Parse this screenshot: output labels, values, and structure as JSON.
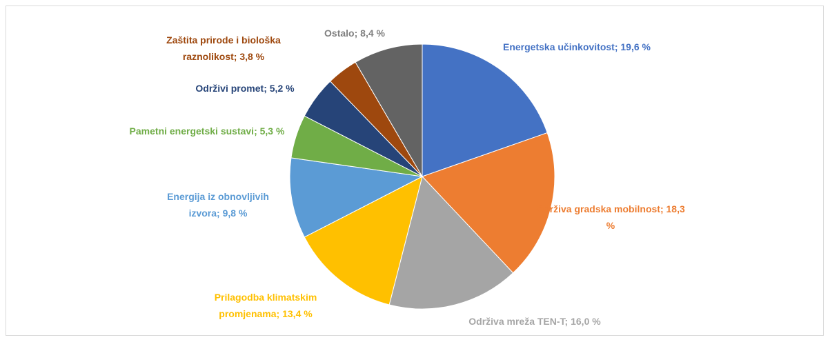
{
  "chart_data": {
    "type": "pie",
    "categories": [
      "Energetska učinkovitost;",
      "Održiva gradska mobilnost;",
      "Održiva mreža TEN-T;",
      "Prilagodba klimatskim promjenama;",
      "Energija iz obnovljivih izvora;",
      "Pametni energetski sustavi;",
      "Održivi promet;",
      "Zaštita prirode i biološka raznolikost;",
      "Ostalo;"
    ],
    "values": [
      19.6,
      18.3,
      16.0,
      13.4,
      9.8,
      5.3,
      5.2,
      3.8,
      8.4
    ],
    "value_labels": [
      "19,6 %",
      "18,3 %",
      "16,0 %",
      "13,4 %",
      "9,8 %",
      "5,3 %",
      "5,2 %",
      "3,8 %",
      "8,4 %"
    ],
    "colors": [
      "#4472c4",
      "#ed7d31",
      "#a5a5a5",
      "#ffc000",
      "#5b9bd5",
      "#70ad47",
      "#264478",
      "#9e480e",
      "#636363"
    ]
  }
}
